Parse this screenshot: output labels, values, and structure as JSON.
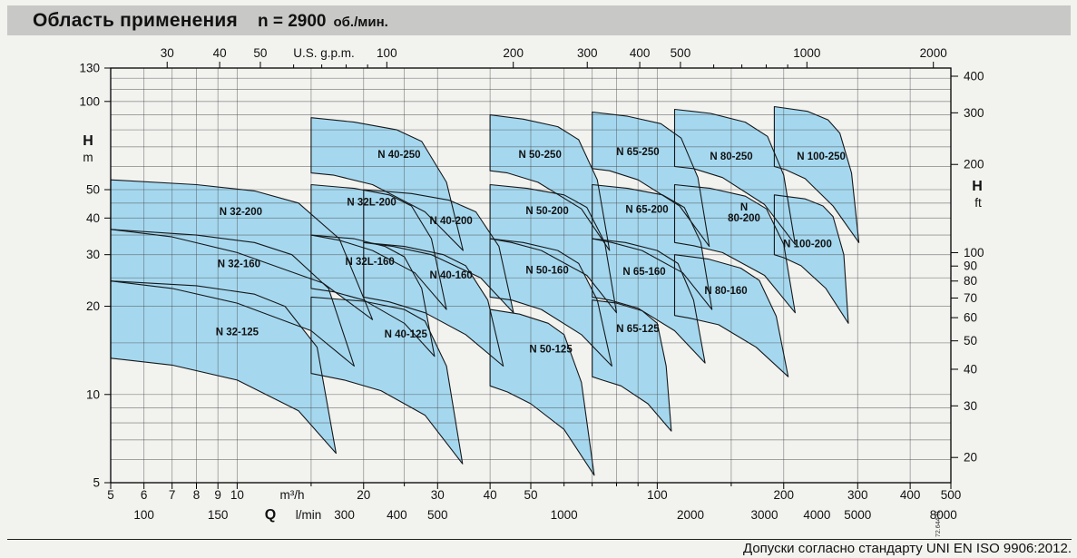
{
  "title": {
    "main": "Область применения",
    "speed": "n = 2900",
    "unit": "об./мин."
  },
  "footer": {
    "note": "Допуски согласно стандарту UNI EN ISO 9906:2012.",
    "code": "72.644 N"
  },
  "colors": {
    "region_fill": "#a5d8ef",
    "region_stroke": "#16181a",
    "title_bg": "#c8c8c6",
    "page_bg": "#f2f2ef"
  },
  "chart_data": {
    "type": "area",
    "title": "Область применения n = 2900 об./мин.",
    "axes": {
      "x_bottom_m3h": {
        "flow_symbol": "Q",
        "unit": "m³/h",
        "scale": "log",
        "range": [
          5,
          500
        ],
        "labeled": [
          5,
          6,
          7,
          8,
          9,
          10,
          20,
          30,
          40,
          50,
          100,
          200,
          300,
          400,
          500
        ],
        "minor": [
          15,
          25,
          60,
          70,
          80,
          90,
          150
        ]
      },
      "x_bottom_lmin": {
        "unit": "l/min",
        "per_m3h": 16.667,
        "labeled": [
          100,
          150,
          300,
          400,
          500,
          1000,
          2000,
          3000,
          4000,
          5000,
          8000
        ]
      },
      "x_top": {
        "title": "U.S. g.p.m.",
        "per_m3h": 4.4029,
        "labeled": [
          30,
          40,
          50,
          100,
          200,
          300,
          400,
          500,
          1000,
          2000
        ],
        "minor": [
          60,
          70,
          80,
          90,
          600,
          700,
          800,
          900
        ]
      },
      "y_left": {
        "label": "H",
        "unit": "m",
        "scale": "log",
        "range": [
          5,
          130
        ],
        "labeled": [
          5,
          10,
          20,
          30,
          40,
          50,
          100,
          130
        ]
      },
      "y_right": {
        "label": "H",
        "unit": "ft",
        "per_m": 3.2808,
        "labeled": [
          20,
          30,
          40,
          50,
          60,
          70,
          80,
          90,
          100,
          200,
          300,
          400
        ]
      }
    },
    "grid": {
      "v_m3h": [
        5,
        6,
        7,
        8,
        9,
        10,
        15,
        20,
        25,
        30,
        40,
        50,
        60,
        70,
        80,
        90,
        100,
        150,
        200,
        300,
        400,
        500
      ],
      "h_m": [
        5,
        6,
        7,
        8,
        9,
        10,
        15,
        20,
        25,
        30,
        35,
        40,
        45,
        50,
        60,
        70,
        80,
        90,
        100,
        110,
        120,
        130
      ]
    },
    "regions": [
      {
        "label": "N 32-125",
        "label_q": 10,
        "label_h": 16.4,
        "points": [
          [
            5,
            24.4
          ],
          [
            8,
            23.5
          ],
          [
            11,
            22
          ],
          [
            13,
            20
          ],
          [
            15.5,
            14.5
          ],
          [
            17.2,
            6.3
          ],
          [
            14,
            8.8
          ],
          [
            10,
            11.2
          ],
          [
            7,
            12.6
          ],
          [
            5,
            13.3
          ]
        ]
      },
      {
        "label": "N 40-125",
        "label_q": 25.2,
        "label_h": 16.1,
        "points": [
          [
            15,
            21.5
          ],
          [
            20,
            20.8
          ],
          [
            25,
            19.5
          ],
          [
            28,
            17.8
          ],
          [
            31.5,
            12.5
          ],
          [
            34.4,
            5.8
          ],
          [
            28,
            8.5
          ],
          [
            22,
            10.3
          ],
          [
            18,
            11.2
          ],
          [
            15,
            11.8
          ]
        ]
      },
      {
        "label": "N 50-125",
        "label_q": 55.8,
        "label_h": 14.3,
        "points": [
          [
            40,
            19.5
          ],
          [
            47,
            18.8
          ],
          [
            55,
            17.5
          ],
          [
            60,
            16
          ],
          [
            66,
            11
          ],
          [
            70.8,
            5.3
          ],
          [
            60,
            7.6
          ],
          [
            50,
            9.3
          ],
          [
            44,
            10.2
          ],
          [
            40,
            10.7
          ]
        ]
      },
      {
        "label": "N 65-125",
        "label_q": 89.9,
        "label_h": 16.8,
        "points": [
          [
            70,
            21
          ],
          [
            80,
            20.5
          ],
          [
            92,
            19.3
          ],
          [
            100,
            17.5
          ],
          [
            105,
            12.5
          ],
          [
            108,
            7.5
          ],
          [
            95,
            9.3
          ],
          [
            82,
            10.7
          ],
          [
            74,
            11.2
          ],
          [
            70,
            11.5
          ]
        ]
      },
      {
        "label": "N 32-160",
        "label_q": 10.1,
        "label_h": 28,
        "points": [
          [
            5,
            36.6
          ],
          [
            8,
            35
          ],
          [
            11,
            33
          ],
          [
            13.5,
            30
          ],
          [
            16.5,
            23
          ],
          [
            19,
            12.5
          ],
          [
            15,
            16.5
          ],
          [
            10,
            20.5
          ],
          [
            7,
            23
          ],
          [
            5,
            24.4
          ]
        ]
      },
      {
        "label": "N 32L-160",
        "label_q": 20.7,
        "label_h": 28.5,
        "points": [
          [
            15,
            35
          ],
          [
            19,
            34
          ],
          [
            22.5,
            32
          ],
          [
            25,
            29.5
          ],
          [
            27.5,
            23
          ],
          [
            29.5,
            13.5
          ],
          [
            25,
            17.5
          ],
          [
            20,
            21
          ],
          [
            17,
            22.4
          ],
          [
            15,
            23
          ]
        ]
      },
      {
        "label": "N 40-160",
        "label_q": 32.3,
        "label_h": 25.6,
        "points": [
          [
            20,
            33
          ],
          [
            25,
            32
          ],
          [
            31,
            30
          ],
          [
            35,
            27.5
          ],
          [
            39.5,
            21
          ],
          [
            43,
            12.5
          ],
          [
            35,
            16
          ],
          [
            28,
            19
          ],
          [
            23,
            20.7
          ],
          [
            20,
            21.5
          ]
        ]
      },
      {
        "label": "N 50-160",
        "label_q": 54.7,
        "label_h": 26.6,
        "points": [
          [
            40,
            34
          ],
          [
            48,
            33
          ],
          [
            58,
            31
          ],
          [
            65,
            28
          ],
          [
            72,
            21
          ],
          [
            78,
            12.5
          ],
          [
            66,
            16
          ],
          [
            53,
            19.5
          ],
          [
            45,
            21
          ],
          [
            40,
            21.5
          ]
        ]
      },
      {
        "label": "N 65-160",
        "label_q": 93.1,
        "label_h": 26.3,
        "points": [
          [
            70,
            34
          ],
          [
            84,
            33
          ],
          [
            100,
            31
          ],
          [
            112,
            28
          ],
          [
            122,
            21
          ],
          [
            130,
            12.8
          ],
          [
            110,
            16.5
          ],
          [
            90,
            19.7
          ],
          [
            77,
            21
          ],
          [
            70,
            21.5
          ]
        ]
      },
      {
        "label": "N 80-160",
        "label_q": 145.7,
        "label_h": 22.7,
        "points": [
          [
            110,
            30
          ],
          [
            132,
            29
          ],
          [
            158,
            27
          ],
          [
            175,
            24.5
          ],
          [
            192,
            18.5
          ],
          [
            205,
            11.5
          ],
          [
            172,
            14.5
          ],
          [
            140,
            17.3
          ],
          [
            120,
            18.2
          ],
          [
            110,
            18.6
          ]
        ]
      },
      {
        "label": "N 32-200",
        "label_q": 10.2,
        "label_h": 42.1,
        "points": [
          [
            5,
            54
          ],
          [
            8,
            52
          ],
          [
            11,
            49.5
          ],
          [
            14,
            45
          ],
          [
            17.5,
            34
          ],
          [
            21,
            18
          ],
          [
            16,
            24
          ],
          [
            10,
            30.5
          ],
          [
            7,
            34.5
          ],
          [
            5,
            36.6
          ]
        ]
      },
      {
        "label": "N 32L-200",
        "label_q": 20.9,
        "label_h": 45.5,
        "points": [
          [
            15,
            52
          ],
          [
            19,
            50.5
          ],
          [
            23,
            48
          ],
          [
            26,
            44
          ],
          [
            29,
            34
          ],
          [
            31.5,
            19.5
          ],
          [
            26.5,
            26
          ],
          [
            21,
            31
          ],
          [
            17.5,
            33.6
          ],
          [
            15,
            35
          ]
        ]
      },
      {
        "label": "N 40-200",
        "label_q": 32.3,
        "label_h": 39.3,
        "points": [
          [
            20,
            50
          ],
          [
            26,
            48.5
          ],
          [
            32,
            46
          ],
          [
            37,
            42
          ],
          [
            42,
            32
          ],
          [
            45.5,
            19
          ],
          [
            38,
            25
          ],
          [
            29,
            30
          ],
          [
            23.5,
            32
          ],
          [
            20,
            33
          ]
        ]
      },
      {
        "label": "N 50-200",
        "label_q": 54.7,
        "label_h": 42.4,
        "points": [
          [
            40,
            52
          ],
          [
            49,
            50.5
          ],
          [
            60,
            48
          ],
          [
            68,
            43.5
          ],
          [
            75,
            33
          ],
          [
            80,
            19
          ],
          [
            68,
            25.5
          ],
          [
            53,
            31
          ],
          [
            45,
            33
          ],
          [
            40,
            34
          ]
        ]
      },
      {
        "label": "N 65-200",
        "label_q": 94.5,
        "label_h": 42.9,
        "points": [
          [
            70,
            52
          ],
          [
            85,
            50.5
          ],
          [
            103,
            48
          ],
          [
            116,
            43.5
          ],
          [
            127,
            33
          ],
          [
            135,
            19.5
          ],
          [
            115,
            26
          ],
          [
            92,
            31
          ],
          [
            78,
            33
          ],
          [
            70,
            34
          ]
        ]
      },
      {
        "label": "N 80-200",
        "label_lines": [
          "N",
          "80-200"
        ],
        "label_q": 160.9,
        "label_h": 41.5,
        "points": [
          [
            110,
            52
          ],
          [
            134,
            50.5
          ],
          [
            162,
            47.5
          ],
          [
            182,
            43
          ],
          [
            200,
            32.5
          ],
          [
            213,
            19
          ],
          [
            180,
            25.5
          ],
          [
            143,
            30.5
          ],
          [
            122,
            32.2
          ],
          [
            110,
            33
          ]
        ]
      },
      {
        "label": "N 100-200",
        "label_q": 227.9,
        "label_h": 32.7,
        "points": [
          [
            190,
            48
          ],
          [
            225,
            46.5
          ],
          [
            248,
            44
          ],
          [
            262,
            40.5
          ],
          [
            278,
            30
          ],
          [
            285,
            17.5
          ],
          [
            252,
            23
          ],
          [
            220,
            27.5
          ],
          [
            200,
            29.3
          ],
          [
            190,
            30
          ]
        ]
      },
      {
        "label": "N 40-250",
        "label_q": 24.3,
        "label_h": 66,
        "points": [
          [
            15,
            88
          ],
          [
            19,
            85
          ],
          [
            24,
            80
          ],
          [
            27.5,
            73
          ],
          [
            31.5,
            53
          ],
          [
            34.5,
            31
          ],
          [
            28,
            42
          ],
          [
            21,
            52
          ],
          [
            17,
            56
          ],
          [
            15,
            57
          ]
        ]
      },
      {
        "label": "N 50-250",
        "label_q": 52.6,
        "label_h": 66,
        "points": [
          [
            40,
            90
          ],
          [
            48,
            87
          ],
          [
            58,
            82
          ],
          [
            65,
            74
          ],
          [
            72,
            54
          ],
          [
            77,
            31
          ],
          [
            66,
            43
          ],
          [
            52,
            53
          ],
          [
            44,
            57
          ],
          [
            40,
            58
          ]
        ]
      },
      {
        "label": "N 65-250",
        "label_q": 89.9,
        "label_h": 67.4,
        "points": [
          [
            70,
            92
          ],
          [
            85,
            89
          ],
          [
            102,
            84
          ],
          [
            114,
            75
          ],
          [
            125,
            55
          ],
          [
            133,
            32
          ],
          [
            113,
            44
          ],
          [
            90,
            54
          ],
          [
            77,
            58
          ],
          [
            70,
            59
          ]
        ]
      },
      {
        "label": "N 80-250",
        "label_q": 150.1,
        "label_h": 65.1,
        "points": [
          [
            110,
            94
          ],
          [
            134,
            91
          ],
          [
            162,
            85
          ],
          [
            183,
            76
          ],
          [
            200,
            56
          ],
          [
            213,
            32.5
          ],
          [
            180,
            44.5
          ],
          [
            143,
            55
          ],
          [
            122,
            59
          ],
          [
            110,
            60
          ]
        ]
      },
      {
        "label": "N 100-250",
        "label_q": 245.6,
        "label_h": 65.1,
        "points": [
          [
            190,
            96
          ],
          [
            228,
            92.5
          ],
          [
            255,
            86.5
          ],
          [
            272,
            78
          ],
          [
            290,
            57
          ],
          [
            302,
            33
          ],
          [
            262,
            44
          ],
          [
            225,
            54.5
          ],
          [
            202,
            58.5
          ],
          [
            190,
            60
          ]
        ]
      }
    ]
  }
}
